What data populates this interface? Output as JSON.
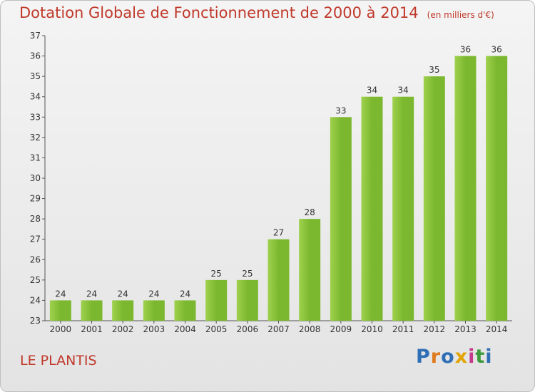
{
  "title": "Dotation Globale de Fonctionnement de 2000 à 2014",
  "subtitle": "(en milliers d'€)",
  "commune": "LE PLANTIS",
  "logo": "Proxiti",
  "chart_data": {
    "type": "bar",
    "title": "Dotation Globale de Fonctionnement de 2000 à 2014",
    "subtitle": "(en milliers d'€)",
    "xlabel": "",
    "ylabel": "",
    "ylim": [
      23,
      37
    ],
    "yticks": [
      23,
      24,
      25,
      26,
      27,
      28,
      29,
      30,
      31,
      32,
      33,
      34,
      35,
      36,
      37
    ],
    "grid": false,
    "categories": [
      "2000",
      "2001",
      "2002",
      "2003",
      "2004",
      "2005",
      "2006",
      "2007",
      "2008",
      "2009",
      "2010",
      "2011",
      "2012",
      "2013",
      "2014"
    ],
    "values": [
      24,
      24,
      24,
      24,
      24,
      25,
      25,
      27,
      28,
      33,
      34,
      34,
      35,
      36,
      36
    ],
    "bar_color": "#7cb82f",
    "bar_color_light": "#9fd14e"
  }
}
